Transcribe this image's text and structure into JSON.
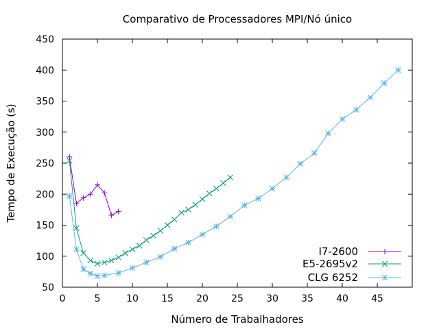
{
  "chart_data": {
    "type": "line",
    "title": "Comparativo de Processadores MPI/Nó único",
    "xlabel": "Número de Trabalhadores",
    "ylabel": "Tempo de Execução (s)",
    "xlim": [
      0,
      50
    ],
    "ylim": [
      50,
      450
    ],
    "xticks": [
      0,
      5,
      10,
      15,
      20,
      25,
      30,
      35,
      40,
      45
    ],
    "yticks": [
      50,
      100,
      150,
      200,
      250,
      300,
      350,
      400,
      450
    ],
    "grid": false,
    "legend_position": "bottom-right",
    "series": [
      {
        "name": "I7-2600",
        "color": "#9400d3",
        "marker": "plus",
        "x": [
          1,
          2,
          3,
          4,
          5,
          6,
          7,
          8
        ],
        "y": [
          260,
          185,
          194,
          200,
          215,
          202,
          166,
          172
        ]
      },
      {
        "name": "E5-2695v2",
        "color": "#009e73",
        "marker": "cross",
        "x": [
          1,
          2,
          3,
          4,
          5,
          6,
          7,
          8,
          9,
          10,
          11,
          12,
          13,
          14,
          15,
          16,
          17,
          18,
          19,
          20,
          21,
          22,
          23,
          24
        ],
        "y": [
          254,
          145,
          105,
          93,
          88,
          90,
          93,
          98,
          105,
          111,
          117,
          126,
          133,
          141,
          150,
          159,
          170,
          175,
          183,
          192,
          201,
          209,
          218,
          227
        ]
      },
      {
        "name": "CLG 6252",
        "color": "#56b4e9",
        "marker": "star",
        "x": [
          1,
          2,
          3,
          4,
          5,
          6,
          8,
          10,
          12,
          14,
          16,
          18,
          20,
          22,
          24,
          26,
          28,
          30,
          32,
          34,
          36,
          38,
          40,
          42,
          44,
          46,
          48
        ],
        "y": [
          197,
          111,
          79,
          72,
          68,
          69,
          73,
          81,
          90,
          99,
          112,
          122,
          135,
          148,
          164,
          182,
          193,
          209,
          227,
          249,
          266,
          298,
          321,
          336,
          356,
          379,
          400
        ]
      }
    ]
  }
}
